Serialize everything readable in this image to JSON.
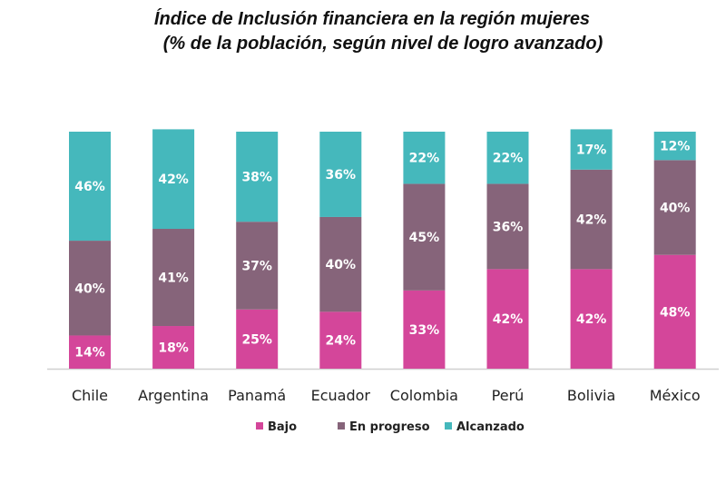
{
  "chart_data": {
    "type": "bar",
    "stacked": true,
    "title": "Índice de Inclusión financiera en la región mujeres",
    "subtitle": "(% de la población, según nivel de logro avanzado)",
    "categories": [
      "Chile",
      "Argentina",
      "Panamá",
      "Ecuador",
      "Colombia",
      "Perú",
      "Bolivia",
      "México"
    ],
    "series": [
      {
        "name": "Bajo",
        "color": "#d4469a",
        "values": [
          14,
          18,
          25,
          24,
          33,
          42,
          42,
          48
        ]
      },
      {
        "name": "En progreso",
        "color": "#86647a",
        "values": [
          40,
          41,
          37,
          40,
          45,
          36,
          42,
          40
        ]
      },
      {
        "name": "Alcanzado",
        "color": "#45b8bc",
        "values": [
          46,
          42,
          38,
          36,
          22,
          22,
          17,
          12
        ]
      }
    ],
    "ylim": [
      0,
      100
    ],
    "legend": "bottom",
    "grid": false,
    "xlabel": "",
    "ylabel": ""
  }
}
